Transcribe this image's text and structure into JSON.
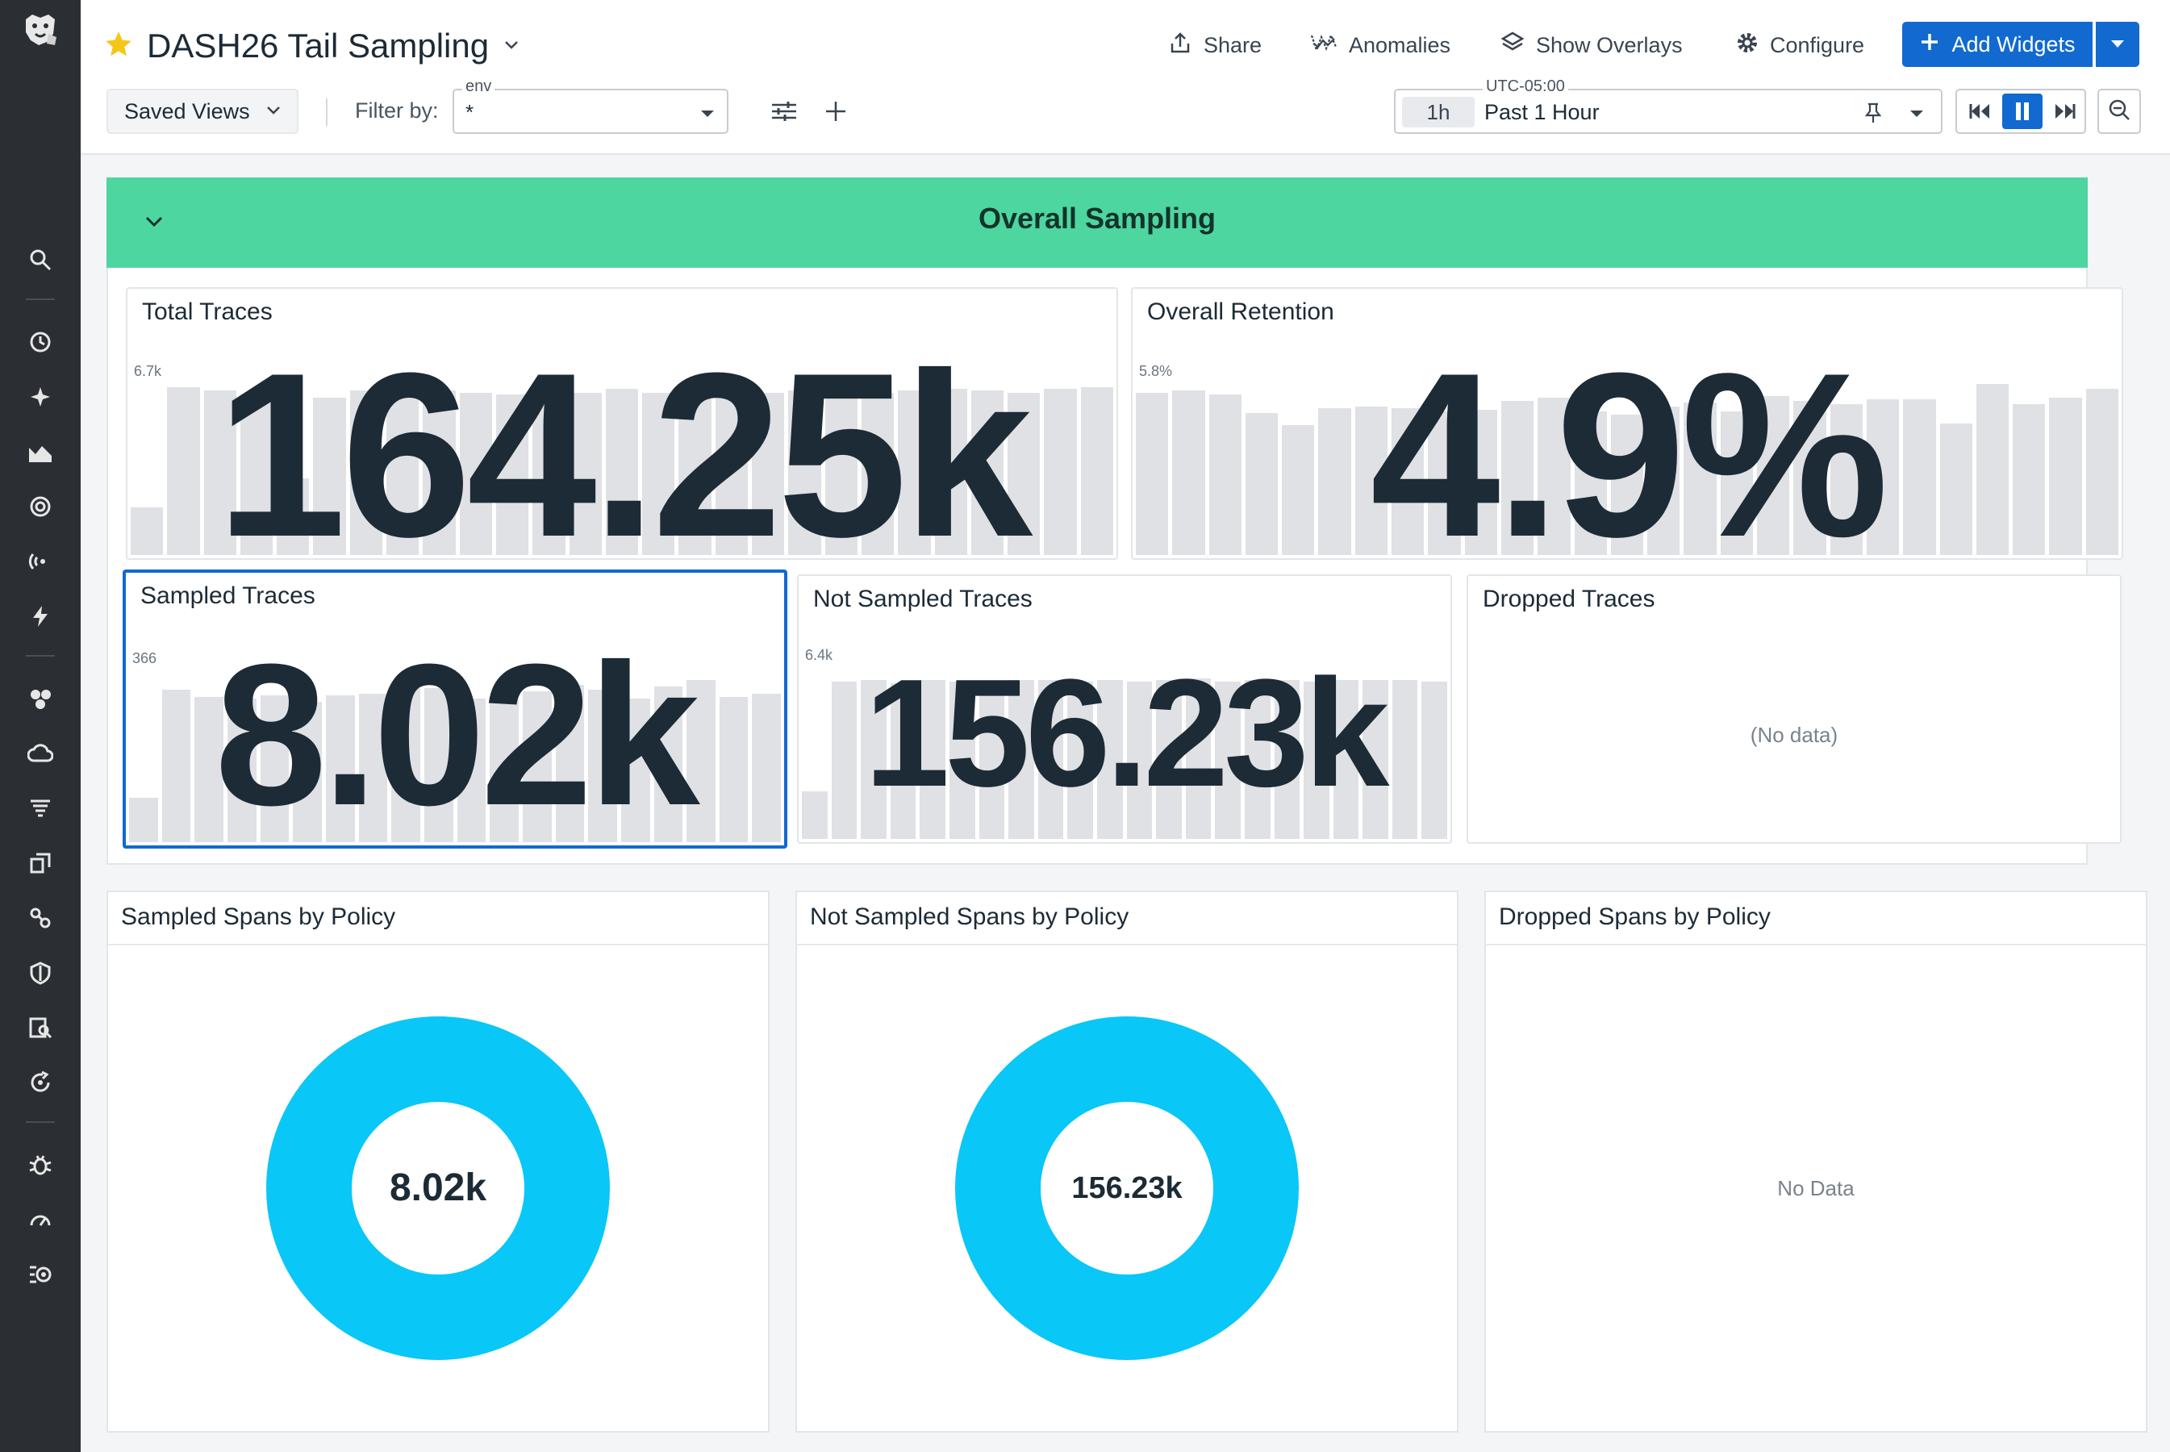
{
  "header": {
    "title": "DASH26 Tail Sampling",
    "share_label": "Share",
    "anomalies_label": "Anomalies",
    "overlays_label": "Show Overlays",
    "configure_label": "Configure",
    "add_widgets_label": "Add Widgets",
    "saved_views_label": "Saved Views",
    "filter_by_label": "Filter by:",
    "env_label": "env",
    "env_value": "*",
    "timezone": "UTC-05:00",
    "time_badge": "1h",
    "time_range": "Past 1 Hour"
  },
  "group": {
    "title": "Overall Sampling",
    "color": "#4dd6a0"
  },
  "widgets": {
    "total_traces": {
      "title": "Total Traces",
      "value": "164.25k",
      "y_max": "6.7k",
      "y_min": "0",
      "bars": [
        0.28,
        0.98,
        0.96,
        0.94,
        0.45,
        0.92,
        0.96,
        0.95,
        0.96,
        0.95,
        0.94,
        0.96,
        0.95,
        0.97,
        0.95,
        0.94,
        0.96,
        0.95,
        0.96,
        0.97,
        0.95,
        0.96,
        0.97,
        0.96,
        0.95,
        0.97,
        0.98
      ]
    },
    "overall_retention": {
      "title": "Overall Retention",
      "value": "4.9%",
      "y_max": "5.8%",
      "y_min": "0",
      "bars": [
        0.95,
        0.96,
        0.94,
        0.83,
        0.76,
        0.86,
        0.87,
        0.86,
        0.84,
        0.85,
        0.9,
        0.92,
        0.84,
        0.82,
        0.87,
        0.89,
        0.84,
        0.93,
        0.9,
        0.88,
        0.91,
        0.91,
        0.77,
        1.0,
        0.88,
        0.92,
        0.97
      ]
    },
    "sampled_traces": {
      "title": "Sampled Traces",
      "value": "8.02k",
      "y_max": "366",
      "y_min": "0",
      "bars": [
        0.26,
        0.89,
        0.85,
        0.84,
        0.86,
        0.82,
        0.86,
        0.87,
        0.9,
        0.9,
        0.84,
        0.84,
        0.88,
        0.92,
        0.89,
        0.84,
        0.91,
        0.95,
        0.85,
        0.87
      ]
    },
    "not_sampled_traces": {
      "title": "Not Sampled Traces",
      "value": "156.23k",
      "y_max": "6.4k",
      "y_min": "0",
      "bars": [
        0.28,
        0.92,
        0.93,
        0.91,
        0.93,
        0.92,
        0.92,
        0.93,
        0.93,
        0.92,
        0.93,
        0.92,
        0.93,
        0.94,
        0.92,
        0.93,
        0.93,
        0.92,
        0.93,
        0.93,
        0.93,
        0.92
      ]
    },
    "dropped_traces": {
      "title": "Dropped Traces",
      "no_data": "(No data)"
    }
  },
  "donuts": {
    "sampled_spans": {
      "title": "Sampled Spans by Policy",
      "center": "8.02k",
      "color": "#09c7f7",
      "share": 1.0
    },
    "not_sampled_spans": {
      "title": "Not Sampled Spans by Policy",
      "center": "156.23k",
      "color": "#09c7f7",
      "share": 1.0
    },
    "dropped_spans": {
      "title": "Dropped Spans by Policy",
      "no_data": "No Data"
    }
  },
  "nav_icons": [
    "search-icon",
    "history-icon",
    "sparkle-icon",
    "dashboards-icon",
    "monitors-icon",
    "signal-icon",
    "lightning-icon",
    "infrastructure-icon",
    "cloud-icon",
    "logs-icon",
    "apm-icon",
    "integrations-icon",
    "security-icon",
    "data-search-icon",
    "refresh-icon",
    "bug-icon",
    "gauge-icon",
    "settings-list-icon"
  ]
}
